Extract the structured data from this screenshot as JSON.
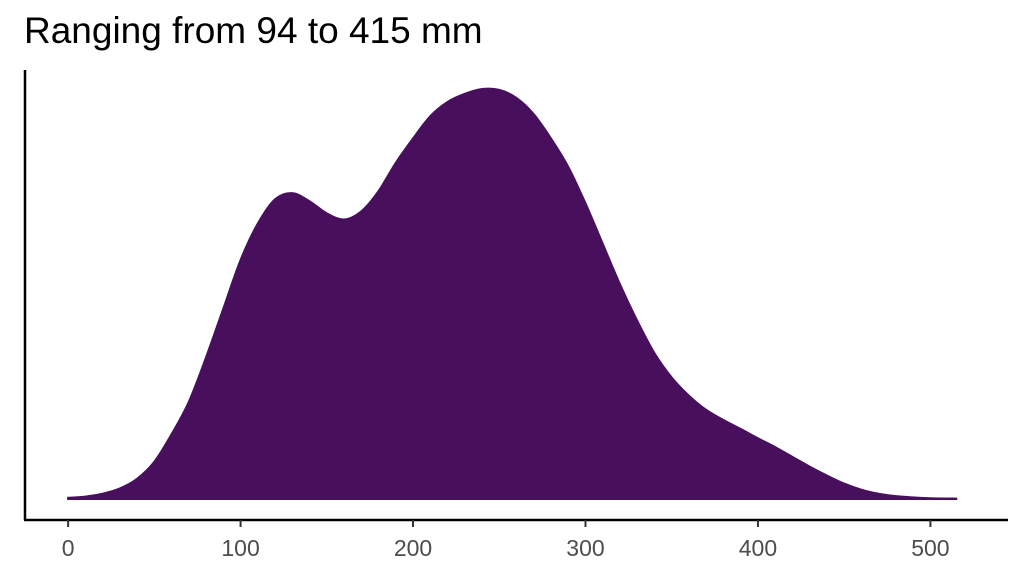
{
  "chart_data": {
    "type": "area",
    "title": "Ranging from 94 to 415 mm",
    "xlabel": "",
    "ylabel": "",
    "xlim": [
      -25,
      545
    ],
    "xticks": [
      0,
      100,
      200,
      300,
      400,
      500
    ],
    "xtick_labels": [
      "0",
      "100",
      "200",
      "300",
      "400",
      "500"
    ],
    "ylim": [
      0,
      1.05
    ],
    "grid": false,
    "legend": "none",
    "fill_color": "#48105C",
    "x": [
      0,
      10,
      20,
      30,
      40,
      50,
      60,
      70,
      80,
      90,
      100,
      110,
      120,
      130,
      140,
      150,
      160,
      170,
      180,
      190,
      200,
      210,
      220,
      230,
      240,
      250,
      260,
      270,
      280,
      290,
      300,
      310,
      320,
      330,
      340,
      350,
      360,
      370,
      380,
      390,
      400,
      410,
      420,
      430,
      440,
      450,
      460,
      470,
      480,
      490,
      500,
      515
    ],
    "y": [
      0.003,
      0.006,
      0.013,
      0.026,
      0.05,
      0.092,
      0.16,
      0.24,
      0.35,
      0.47,
      0.59,
      0.68,
      0.74,
      0.755,
      0.735,
      0.705,
      0.69,
      0.71,
      0.76,
      0.83,
      0.89,
      0.945,
      0.98,
      1.0,
      1.012,
      1.01,
      0.99,
      0.95,
      0.89,
      0.82,
      0.73,
      0.63,
      0.53,
      0.44,
      0.36,
      0.3,
      0.255,
      0.22,
      0.195,
      0.173,
      0.15,
      0.128,
      0.104,
      0.08,
      0.058,
      0.038,
      0.023,
      0.013,
      0.007,
      0.004,
      0.002,
      0.001
    ]
  }
}
